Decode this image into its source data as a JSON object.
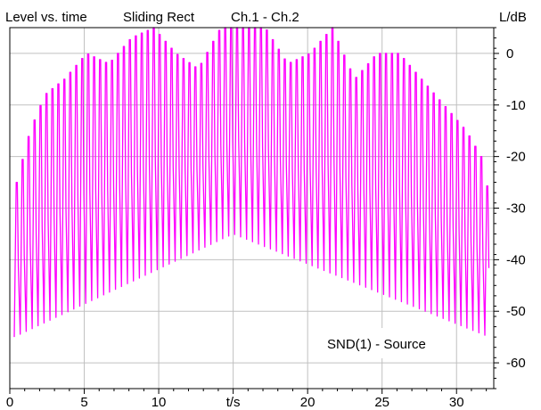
{
  "header": {
    "mode": "Level vs. time",
    "window": "Sliding Rect",
    "channels": "Ch.1 - Ch.2",
    "y_unit": "L/dB"
  },
  "annotation": "SND(1) - Source",
  "colors": {
    "trace": "#ff00ff",
    "grid": "#c0c0c0",
    "frame": "#000000",
    "background": "#ffffff"
  },
  "chart_data": {
    "type": "line",
    "title": "",
    "xlabel": "t/s",
    "ylabel": "L/dB",
    "xlim": [
      0,
      32.5
    ],
    "ylim": [
      -65,
      5
    ],
    "x_ticks": [
      0,
      5,
      10,
      15,
      20,
      25,
      30
    ],
    "x_tick_labels": [
      "0",
      "5",
      "10",
      "t/s",
      "20",
      "25",
      "30"
    ],
    "y_ticks": [
      0,
      -10,
      -20,
      -30,
      -40,
      -50,
      -60
    ],
    "y_tick_labels": [
      "0",
      "-10",
      "-20",
      "-30",
      "-40",
      "-50",
      "-60"
    ],
    "grid": true,
    "series": [
      {
        "color": "#ff00ff",
        "oscillation_period_s": 0.4,
        "peak_level_db": 5,
        "minimum_envelope": {
          "t": [
            0.3,
            15,
            32.2
          ],
          "db": [
            -55,
            -35,
            -55
          ]
        },
        "upper_envelope": {
          "t": [
            0.3,
            1.2,
            2.2,
            3.5,
            5.0,
            6.5,
            8.0,
            9.5,
            11.0,
            12.5,
            14.0,
            15.5,
            17.0,
            18.5,
            20.0,
            21.5,
            23.0,
            24.5,
            26.0,
            27.5,
            29.0,
            30.5,
            31.5,
            32.2
          ],
          "db": [
            -25,
            -15,
            -8,
            -5,
            0,
            -2,
            3,
            5,
            0,
            -3,
            5,
            5,
            5,
            -2,
            0,
            5,
            -5,
            0,
            0,
            -5,
            -10,
            -15,
            -20,
            -30
          ]
        }
      }
    ]
  }
}
